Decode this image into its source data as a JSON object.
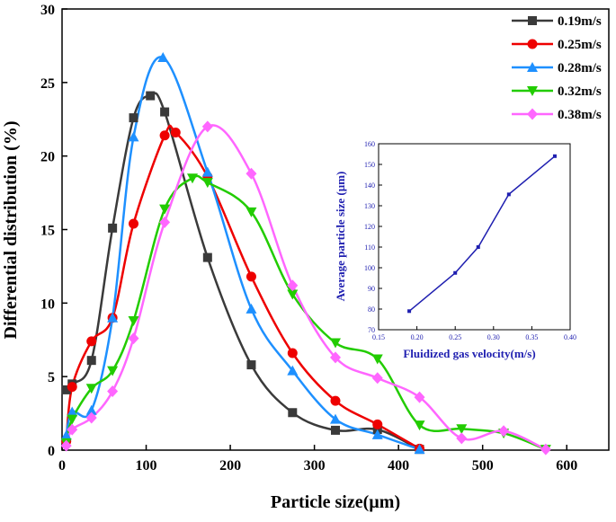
{
  "chart_data": [
    {
      "type": "line",
      "title": "",
      "xlabel": "Particle size(µm)",
      "ylabel": "Differential distribution (%)",
      "xlim": [
        0,
        650
      ],
      "ylim": [
        0,
        30
      ],
      "xticks": [
        0,
        100,
        200,
        300,
        400,
        500,
        600
      ],
      "yticks": [
        0,
        5,
        10,
        15,
        20,
        25,
        30
      ],
      "legend_position": "top-right",
      "series": [
        {
          "name": "0.19m/s",
          "color": "#3a3a3a",
          "marker": "square",
          "points": [
            [
              5,
              4.1
            ],
            [
              12,
              4.5
            ],
            [
              35,
              6.1
            ],
            [
              60,
              15.1
            ],
            [
              85,
              22.6
            ],
            [
              105,
              24.1
            ],
            [
              122,
              23.0
            ],
            [
              173,
              13.1
            ],
            [
              225,
              5.8
            ],
            [
              274,
              2.55
            ],
            [
              325,
              1.35
            ],
            [
              375,
              1.4
            ],
            [
              425,
              0.05
            ]
          ]
        },
        {
          "name": "0.25m/s",
          "color": "#ee0000",
          "marker": "circle",
          "points": [
            [
              5,
              0.6
            ],
            [
              12,
              4.3
            ],
            [
              35,
              7.4
            ],
            [
              60,
              9.0
            ],
            [
              85,
              15.4
            ],
            [
              122,
              21.4
            ],
            [
              135,
              21.6
            ],
            [
              173,
              18.6
            ],
            [
              225,
              11.8
            ],
            [
              274,
              6.6
            ],
            [
              325,
              3.35
            ],
            [
              375,
              1.75
            ],
            [
              425,
              0.1
            ]
          ]
        },
        {
          "name": "0.28m/s",
          "color": "#1e90ff",
          "marker": "triangle-up",
          "points": [
            [
              5,
              1.0
            ],
            [
              12,
              2.6
            ],
            [
              35,
              2.7
            ],
            [
              60,
              9.0
            ],
            [
              85,
              21.3
            ],
            [
              120,
              26.7
            ],
            [
              173,
              18.9
            ],
            [
              225,
              9.6
            ],
            [
              274,
              5.4
            ],
            [
              325,
              2.1
            ],
            [
              375,
              1.05
            ],
            [
              425,
              0.05
            ]
          ]
        },
        {
          "name": "0.32m/s",
          "color": "#22cc00",
          "marker": "triangle-down",
          "points": [
            [
              5,
              0.5
            ],
            [
              12,
              2.1
            ],
            [
              35,
              4.2
            ],
            [
              60,
              5.4
            ],
            [
              85,
              8.8
            ],
            [
              122,
              16.4
            ],
            [
              155,
              18.5
            ],
            [
              173,
              18.2
            ],
            [
              225,
              16.2
            ],
            [
              274,
              10.6
            ],
            [
              325,
              7.3
            ],
            [
              375,
              6.2
            ],
            [
              425,
              1.7
            ],
            [
              475,
              1.45
            ],
            [
              525,
              1.15
            ],
            [
              575,
              0.05
            ]
          ]
        },
        {
          "name": "0.38m/s",
          "color": "#ff66ff",
          "marker": "diamond",
          "points": [
            [
              5,
              0.3
            ],
            [
              12,
              1.4
            ],
            [
              35,
              2.2
            ],
            [
              60,
              4.0
            ],
            [
              85,
              7.6
            ],
            [
              122,
              15.5
            ],
            [
              173,
              22.0
            ],
            [
              225,
              18.8
            ],
            [
              274,
              11.2
            ],
            [
              325,
              6.3
            ],
            [
              375,
              4.9
            ],
            [
              425,
              3.6
            ],
            [
              475,
              0.8
            ],
            [
              525,
              1.3
            ],
            [
              575,
              0.05
            ]
          ]
        }
      ]
    },
    {
      "type": "line",
      "title": "",
      "xlabel": "Fluidized gas velocity(m/s)",
      "ylabel": "Average particle size (µm)",
      "xlim": [
        0.15,
        0.4
      ],
      "ylim": [
        70,
        160
      ],
      "xticks": [
        0.15,
        0.2,
        0.25,
        0.3,
        0.35,
        0.4
      ],
      "xtick_labels": [
        "0.15",
        "0.20",
        "0.25",
        "0.30",
        "0.35",
        "0.40"
      ],
      "yticks": [
        70,
        80,
        90,
        100,
        110,
        120,
        130,
        140,
        150,
        160
      ],
      "color": "#1f1fb0",
      "x": [
        0.19,
        0.25,
        0.28,
        0.32,
        0.38
      ],
      "y": [
        79,
        97.5,
        110,
        135.5,
        154
      ]
    }
  ]
}
